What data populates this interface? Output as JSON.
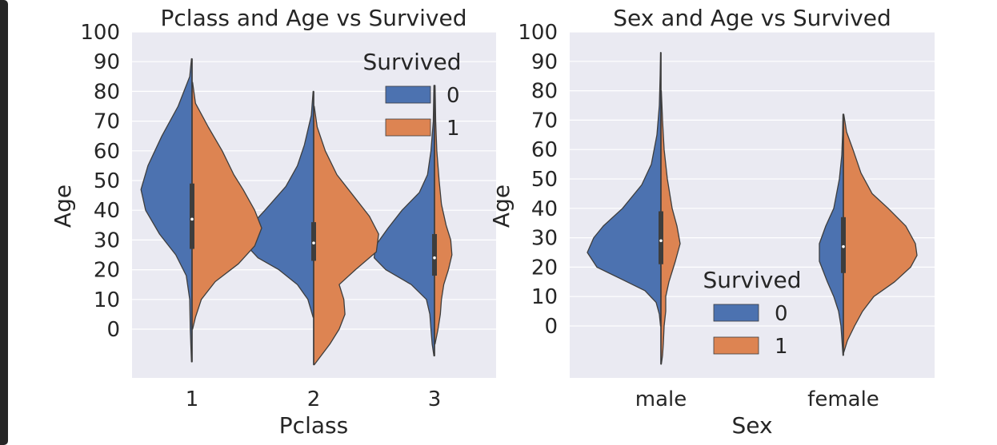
{
  "chart_data": [
    {
      "type": "violin",
      "title": "Pclass and Age vs Survived",
      "xlabel": "Pclass",
      "ylabel": "Age",
      "categories": [
        "1",
        "2",
        "3"
      ],
      "yticks": [
        "0",
        "10",
        "20",
        "30",
        "40",
        "50",
        "60",
        "70",
        "80",
        "90",
        "100"
      ],
      "ylim": [
        -16,
        100
      ],
      "split": true,
      "grid": true,
      "legend": {
        "title": "Survived",
        "entries": [
          "0",
          "1"
        ],
        "position": "top-right"
      },
      "series": [
        {
          "name": "0",
          "color": "#4c72b0",
          "groups": [
            {
              "category": "1",
              "min": -11,
              "max": 91,
              "profile": [
                [
                  91,
                  0.5
                ],
                [
                  85,
                  2
                ],
                [
                  75,
                  12
                ],
                [
                  65,
                  26
                ],
                [
                  55,
                  38
                ],
                [
                  47,
                  44
                ],
                [
                  40,
                  40
                ],
                [
                  32,
                  28
                ],
                [
                  25,
                  14
                ],
                [
                  18,
                  5
                ],
                [
                  10,
                  2
                ],
                [
                  0,
                  1.5
                ],
                [
                  -6,
                  1
                ],
                [
                  -11,
                  0.5
                ]
              ]
            },
            {
              "category": "2",
              "min": 4,
              "max": 80,
              "profile": [
                [
                  80,
                  0.5
                ],
                [
                  72,
                  2
                ],
                [
                  62,
                  8
                ],
                [
                  55,
                  14
                ],
                [
                  48,
                  24
                ],
                [
                  40,
                  42
                ],
                [
                  34,
                  56
                ],
                [
                  29,
                  60
                ],
                [
                  24,
                  48
                ],
                [
                  20,
                  30
                ],
                [
                  15,
                  14
                ],
                [
                  10,
                  5
                ],
                [
                  4,
                  0.5
                ]
              ]
            },
            {
              "category": "3",
              "min": -9,
              "max": 82,
              "profile": [
                [
                  82,
                  0.5
                ],
                [
                  70,
                  1
                ],
                [
                  60,
                  3
                ],
                [
                  52,
                  6
                ],
                [
                  46,
                  13
                ],
                [
                  40,
                  28
                ],
                [
                  34,
                  40
                ],
                [
                  28,
                  51
                ],
                [
                  24,
                  52
                ],
                [
                  20,
                  42
                ],
                [
                  15,
                  20
                ],
                [
                  10,
                  7
                ],
                [
                  5,
                  4
                ],
                [
                  0,
                  3
                ],
                [
                  -5,
                  2
                ],
                [
                  -9,
                  0.5
                ]
              ]
            }
          ]
        },
        {
          "name": "1",
          "color": "#dd8452",
          "groups": [
            {
              "category": "1",
              "min": 0,
              "max": 83,
              "profile": [
                [
                  83,
                  0.5
                ],
                [
                  76,
                  3
                ],
                [
                  68,
                  14
                ],
                [
                  60,
                  26
                ],
                [
                  52,
                  36
                ],
                [
                  47,
                  44
                ],
                [
                  40,
                  54
                ],
                [
                  34,
                  60
                ],
                [
                  28,
                  54
                ],
                [
                  22,
                  40
                ],
                [
                  16,
                  20
                ],
                [
                  10,
                  8
                ],
                [
                  4,
                  3
                ],
                [
                  0,
                  0.5
                ]
              ]
            },
            {
              "category": "2",
              "min": -12,
              "max": 75,
              "profile": [
                [
                  75,
                  0.5
                ],
                [
                  68,
                  3
                ],
                [
                  60,
                  10
                ],
                [
                  52,
                  20
                ],
                [
                  44,
                  36
                ],
                [
                  38,
                  48
                ],
                [
                  32,
                  56
                ],
                [
                  26,
                  54
                ],
                [
                  20,
                  36
                ],
                [
                  15,
                  22
                ],
                [
                  10,
                  26
                ],
                [
                  5,
                  27
                ],
                [
                  0,
                  22
                ],
                [
                  -5,
                  14
                ],
                [
                  -12,
                  0.5
                ]
              ]
            },
            {
              "category": "3",
              "min": -5,
              "max": 82,
              "profile": [
                [
                  82,
                  0.5
                ],
                [
                  70,
                  1
                ],
                [
                  60,
                  2
                ],
                [
                  50,
                  4
                ],
                [
                  42,
                  6
                ],
                [
                  35,
                  10
                ],
                [
                  30,
                  14
                ],
                [
                  25,
                  15
                ],
                [
                  20,
                  12
                ],
                [
                  15,
                  8
                ],
                [
                  10,
                  6
                ],
                [
                  5,
                  5
                ],
                [
                  0,
                  3
                ],
                [
                  -5,
                  0.5
                ]
              ]
            }
          ]
        }
      ],
      "box": [
        {
          "category": "1",
          "q1": 27,
          "median": 37,
          "q3": 49
        },
        {
          "category": "2",
          "q1": 23,
          "median": 29,
          "q3": 36
        },
        {
          "category": "3",
          "q1": 18,
          "median": 24,
          "q3": 32
        }
      ]
    },
    {
      "type": "violin",
      "title": "Sex and Age vs Survived",
      "xlabel": "Sex",
      "ylabel": "Age",
      "categories": [
        "male",
        "female"
      ],
      "yticks": [
        "0",
        "10",
        "20",
        "30",
        "40",
        "50",
        "60",
        "70",
        "80",
        "90",
        "100"
      ],
      "ylim": [
        -18,
        100
      ],
      "split": true,
      "grid": true,
      "legend": {
        "title": "Survived",
        "entries": [
          "0",
          "1"
        ],
        "position": "lower-center"
      },
      "series": [
        {
          "name": "0",
          "color": "#4c72b0",
          "groups": [
            {
              "category": "male",
              "min": 0,
              "max": 93,
              "profile": [
                [
                  93,
                  0.5
                ],
                [
                  85,
                  1
                ],
                [
                  75,
                  2
                ],
                [
                  65,
                  5
                ],
                [
                  55,
                  12
                ],
                [
                  48,
                  24
                ],
                [
                  40,
                  48
                ],
                [
                  34,
                  72
                ],
                [
                  30,
                  84
                ],
                [
                  25,
                  92
                ],
                [
                  20,
                  80
                ],
                [
                  16,
                  50
                ],
                [
                  12,
                  20
                ],
                [
                  8,
                  6
                ],
                [
                  4,
                  2
                ],
                [
                  0,
                  0.5
                ]
              ]
            },
            {
              "category": "female",
              "min": -10,
              "max": 72,
              "profile": [
                [
                  72,
                  0.5
                ],
                [
                  65,
                  1
                ],
                [
                  58,
                  2
                ],
                [
                  50,
                  5
                ],
                [
                  40,
                  12
                ],
                [
                  34,
                  22
                ],
                [
                  28,
                  30
                ],
                [
                  22,
                  30
                ],
                [
                  15,
                  20
                ],
                [
                  10,
                  12
                ],
                [
                  5,
                  6
                ],
                [
                  0,
                  3
                ],
                [
                  -10,
                  0.5
                ]
              ]
            }
          ]
        },
        {
          "name": "1",
          "color": "#dd8452",
          "groups": [
            {
              "category": "male",
              "min": -13,
              "max": 80,
              "profile": [
                [
                  80,
                  0.5
                ],
                [
                  70,
                  2
                ],
                [
                  60,
                  4
                ],
                [
                  50,
                  8
                ],
                [
                  40,
                  14
                ],
                [
                  34,
                  20
                ],
                [
                  28,
                  24
                ],
                [
                  22,
                  18
                ],
                [
                  15,
                  10
                ],
                [
                  10,
                  6
                ],
                [
                  5,
                  6
                ],
                [
                  0,
                  4
                ],
                [
                  -6,
                  3
                ],
                [
                  -10,
                  2
                ],
                [
                  -13,
                  0.5
                ]
              ]
            },
            {
              "category": "female",
              "min": -9,
              "max": 72,
              "profile": [
                [
                  72,
                  0.5
                ],
                [
                  66,
                  4
                ],
                [
                  60,
                  12
                ],
                [
                  52,
                  22
                ],
                [
                  45,
                  36
                ],
                [
                  40,
                  56
                ],
                [
                  34,
                  78
                ],
                [
                  28,
                  90
                ],
                [
                  24,
                  92
                ],
                [
                  20,
                  84
                ],
                [
                  15,
                  64
                ],
                [
                  10,
                  38
                ],
                [
                  5,
                  24
                ],
                [
                  0,
                  14
                ],
                [
                  -5,
                  5
                ],
                [
                  -9,
                  0.5
                ]
              ]
            }
          ]
        }
      ],
      "box": [
        {
          "category": "male",
          "q1": 21,
          "median": 29,
          "q3": 39
        },
        {
          "category": "female",
          "q1": 18,
          "median": 27,
          "q3": 37
        }
      ]
    }
  ]
}
